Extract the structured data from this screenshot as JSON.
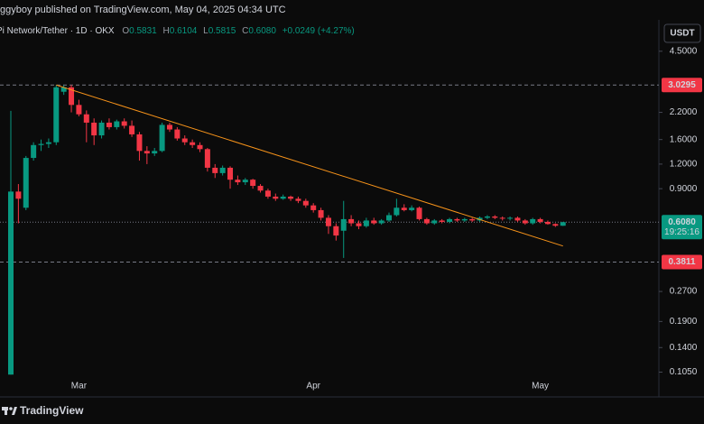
{
  "header": {
    "byline": "ggyboy published on TradingView.com, May 04, 2025 04:34 UTC",
    "symbol": "Pi Network/Tether · 1D · OKX",
    "ohlc": [
      {
        "label": "O",
        "value": "0.5831"
      },
      {
        "label": "H",
        "value": "0.6104"
      },
      {
        "label": "L",
        "value": "0.5815"
      },
      {
        "label": "C",
        "value": "0.6080"
      }
    ],
    "change": "+0.0249 (+4.27%)",
    "currency": "USDT"
  },
  "footer": {
    "brand": "TradingView"
  },
  "chart_data": {
    "type": "candlestick",
    "categories": [
      null,
      null,
      null,
      null,
      null,
      null,
      null,
      null,
      null,
      "Mar",
      null,
      null,
      null,
      null,
      null,
      null,
      null,
      null,
      null,
      null,
      null,
      null,
      null,
      null,
      null,
      null,
      null,
      null,
      null,
      null,
      null,
      null,
      null,
      null,
      null,
      null,
      null,
      null,
      null,
      null,
      "Apr",
      null,
      null,
      null,
      null,
      null,
      null,
      null,
      null,
      null,
      null,
      null,
      null,
      null,
      null,
      null,
      null,
      null,
      null,
      null,
      null,
      null,
      null,
      null,
      null,
      null,
      null,
      null,
      null,
      null,
      "May",
      null,
      null,
      null
    ],
    "open": [
      0.102,
      0.87,
      0.72,
      1.29,
      1.5,
      1.52,
      1.55,
      2.8,
      2.95,
      2.4,
      2.15,
      1.95,
      1.68,
      1.95,
      1.85,
      1.98,
      1.88,
      1.7,
      1.4,
      1.36,
      1.4,
      1.9,
      1.8,
      1.62,
      1.55,
      1.5,
      1.43,
      1.15,
      1.08,
      1.15,
      1.0,
      0.97,
      1.0,
      0.93,
      0.88,
      0.82,
      0.8,
      0.82,
      0.8,
      0.78,
      0.74,
      0.7,
      0.64,
      0.58,
      0.55,
      0.63,
      0.6,
      0.58,
      0.62,
      0.6,
      0.62,
      0.66,
      0.72,
      0.7,
      0.72,
      0.63,
      0.6,
      0.62,
      0.61,
      0.63,
      0.62,
      0.63,
      0.62,
      0.64,
      0.65,
      0.64,
      0.635,
      0.64,
      0.62,
      0.6,
      0.63,
      0.61,
      0.595,
      0.5831
    ],
    "high": [
      2.24,
      0.95,
      1.32,
      1.55,
      1.6,
      1.62,
      3.03,
      3.02,
      3.03,
      2.55,
      2.25,
      2.05,
      2.0,
      2.05,
      2.02,
      2.05,
      2.0,
      1.75,
      1.48,
      1.45,
      1.95,
      1.95,
      1.85,
      1.68,
      1.6,
      1.55,
      1.45,
      1.2,
      1.18,
      1.17,
      1.05,
      1.02,
      1.01,
      0.95,
      0.9,
      0.85,
      0.84,
      0.83,
      0.82,
      0.8,
      0.76,
      0.72,
      0.66,
      0.6,
      0.78,
      0.66,
      0.62,
      0.64,
      0.64,
      0.63,
      0.68,
      0.8,
      0.75,
      0.74,
      0.73,
      0.64,
      0.63,
      0.63,
      0.64,
      0.64,
      0.64,
      0.64,
      0.65,
      0.66,
      0.66,
      0.65,
      0.65,
      0.65,
      0.63,
      0.64,
      0.64,
      0.62,
      0.6,
      0.6104
    ],
    "low": [
      0.102,
      0.6,
      0.7,
      1.25,
      1.4,
      1.45,
      1.5,
      2.7,
      2.2,
      2.1,
      1.55,
      1.5,
      1.62,
      1.8,
      1.8,
      1.82,
      1.65,
      1.25,
      1.2,
      1.32,
      1.38,
      1.75,
      1.58,
      1.5,
      1.45,
      1.38,
      1.1,
      1.02,
      1.05,
      0.9,
      0.94,
      0.94,
      0.9,
      0.86,
      0.8,
      0.78,
      0.79,
      0.78,
      0.76,
      0.72,
      0.68,
      0.62,
      0.53,
      0.49,
      0.4,
      0.58,
      0.56,
      0.57,
      0.59,
      0.59,
      0.61,
      0.65,
      0.69,
      0.69,
      0.62,
      0.59,
      0.59,
      0.6,
      0.6,
      0.61,
      0.61,
      0.61,
      0.61,
      0.63,
      0.63,
      0.62,
      0.62,
      0.61,
      0.59,
      0.59,
      0.6,
      0.59,
      0.575,
      0.5815
    ],
    "close": [
      0.87,
      0.8,
      1.29,
      1.5,
      1.52,
      1.55,
      2.95,
      2.95,
      2.4,
      2.15,
      1.95,
      1.68,
      1.95,
      1.85,
      1.98,
      1.88,
      1.7,
      1.4,
      1.36,
      1.4,
      1.9,
      1.8,
      1.62,
      1.55,
      1.5,
      1.43,
      1.15,
      1.08,
      1.15,
      1.0,
      0.97,
      1.0,
      0.93,
      0.88,
      0.82,
      0.8,
      0.82,
      0.8,
      0.78,
      0.74,
      0.7,
      0.64,
      0.58,
      0.52,
      0.63,
      0.6,
      0.58,
      0.62,
      0.6,
      0.62,
      0.66,
      0.72,
      0.7,
      0.72,
      0.63,
      0.6,
      0.62,
      0.61,
      0.63,
      0.62,
      0.63,
      0.62,
      0.64,
      0.65,
      0.64,
      0.635,
      0.64,
      0.62,
      0.6,
      0.63,
      0.61,
      0.595,
      0.5831,
      0.608
    ],
    "up_color": "#089981",
    "down_color": "#f23645",
    "ylim": [
      0.097,
      6.5
    ],
    "log_scale": true,
    "yticks": [
      {
        "value": 4.5,
        "label": "4.5000"
      },
      {
        "value": 2.2,
        "label": "2.2000"
      },
      {
        "value": 1.6,
        "label": "1.6000"
      },
      {
        "value": 1.2,
        "label": "1.2000"
      },
      {
        "value": 0.9,
        "label": "0.9000"
      },
      {
        "value": 0.27,
        "label": "0.2700"
      },
      {
        "value": 0.19,
        "label": "0.1900"
      },
      {
        "value": 0.14,
        "label": "0.1400"
      },
      {
        "value": 0.105,
        "label": "0.1050"
      }
    ],
    "price_lines": [
      {
        "value": 3.0295,
        "label": "3.0295",
        "color": "#f23645"
      },
      {
        "value": 0.3811,
        "label": "0.3811",
        "color": "#f23645"
      }
    ],
    "current_price": {
      "value": 0.608,
      "label": "0.6080",
      "countdown": "19:25:16",
      "color": "#089981"
    },
    "trendline": {
      "color": "#f7931a",
      "x": [
        6,
        73
      ],
      "values": [
        3.03,
        0.46
      ]
    }
  }
}
